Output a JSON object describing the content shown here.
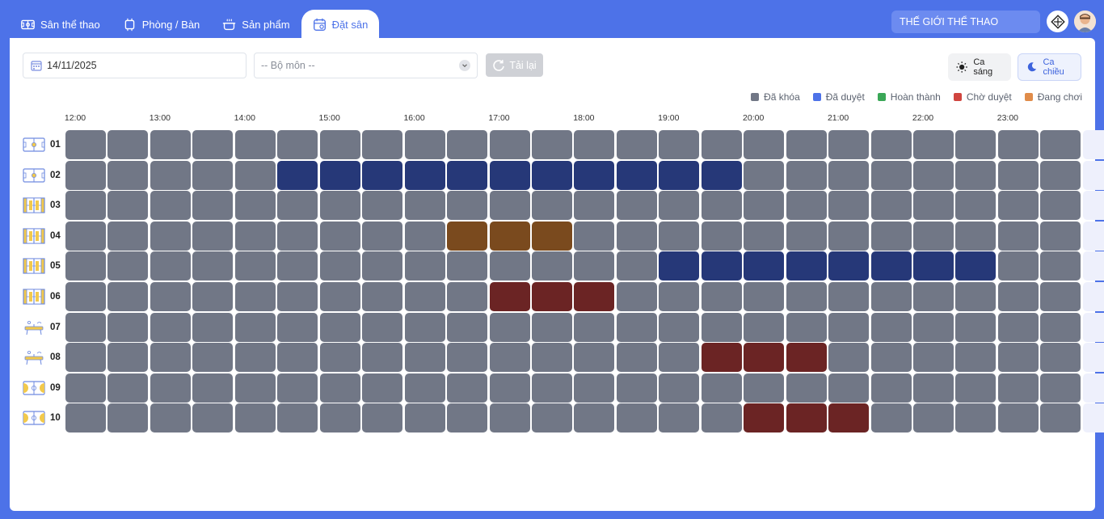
{
  "nav": {
    "tabs": [
      {
        "label": "Sân thể thao",
        "icon": "field-icon",
        "active": false
      },
      {
        "label": "Phòng / Bàn",
        "icon": "table-icon",
        "active": false
      },
      {
        "label": "Sản phẩm",
        "icon": "pot-icon",
        "active": false
      },
      {
        "label": "Đặt sân",
        "icon": "calendar-icon",
        "active": true
      }
    ],
    "brand": "THẾ GIỚI THỂ THAO"
  },
  "filters": {
    "date": "14/11/2025",
    "sport_placeholder": "-- Bộ môn --",
    "reload_label": "Tải lại"
  },
  "shifts": {
    "morning": "Ca sáng",
    "afternoon": "Ca chiều",
    "selected": "afternoon"
  },
  "legend": [
    {
      "label": "Đã khóa",
      "color": "#717786",
      "key": "L"
    },
    {
      "label": "Đã duyệt",
      "color": "#4d72e8",
      "key": "B"
    },
    {
      "label": "Hoàn thành",
      "color": "#3aa757",
      "key": "H"
    },
    {
      "label": "Chờ duyệt",
      "color": "#d0453f",
      "key": "R"
    },
    {
      "label": "Đang chơi",
      "color": "#e08c4a",
      "key": "O"
    }
  ],
  "cell_colors": {
    "L": "#717786",
    "B": "#263878",
    "R": "#6b2424",
    "O": "#7a4a1e",
    "E": "#eef0fc"
  },
  "hours": [
    "12:00",
    "13:00",
    "14:00",
    "15:00",
    "16:00",
    "17:00",
    "18:00",
    "19:00",
    "20:00",
    "21:00",
    "22:00",
    "23:00"
  ],
  "courts": [
    {
      "label": "01",
      "icon": "badminton-court-icon",
      "slots": "LLLLLLLLLLLLLLLLLLLLLLLLE"
    },
    {
      "label": "02",
      "icon": "badminton-court-icon",
      "slots": "LLLLLBBBBBBBBBBBLLLLLLLLE"
    },
    {
      "label": "03",
      "icon": "tennis-court-icon",
      "slots": "LLLLLLLLLLLLLLLLLLLLLLLLE"
    },
    {
      "label": "04",
      "icon": "tennis-court-icon",
      "slots": "LLLLLLLLLOOOLLLLLLLLLLLLE"
    },
    {
      "label": "05",
      "icon": "tennis-court-icon",
      "slots": "LLLLLLLLLLLLLLBBBBBBBBLLE"
    },
    {
      "label": "06",
      "icon": "tennis-court-icon",
      "slots": "LLLLLLLLLLRRRLLLLLLLLLLLE"
    },
    {
      "label": "07",
      "icon": "ping-pong-table-icon",
      "slots": "LLLLLLLLLLLLLLLLLLLLLLLLE"
    },
    {
      "label": "08",
      "icon": "ping-pong-table-icon",
      "slots": "LLLLLLLLLLLLLLLRRRLLLLLLE"
    },
    {
      "label": "09",
      "icon": "basketball-court-icon",
      "slots": "LLLLLLLLLLLLLLLLLLLLLLLLE"
    },
    {
      "label": "10",
      "icon": "basketball-court-icon",
      "slots": "LLLLLLLLLLLLLLLLRRRLLLLLE"
    }
  ]
}
